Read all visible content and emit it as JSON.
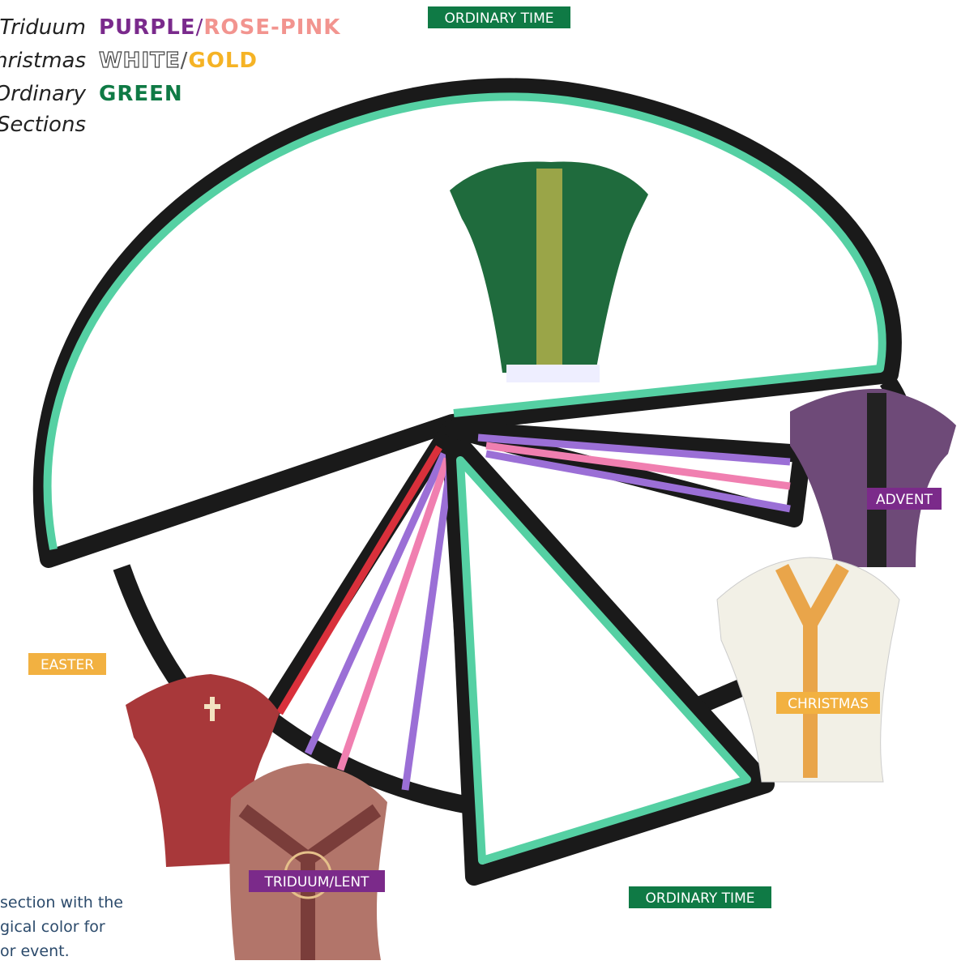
{
  "legend": [
    {
      "label": "Triduum",
      "colors": [
        "PURPLE",
        "/",
        "ROSE-PINK"
      ]
    },
    {
      "label": "hristmas",
      "colors": [
        "WHITE",
        "/",
        "GOLD"
      ]
    },
    {
      "label": "Ordinary",
      "colors": [
        "GREEN"
      ]
    },
    {
      "label": "Sections"
    }
  ],
  "labels": [
    "ORDINARY TIME",
    "ADVENT",
    "CHRISTMAS",
    "EASTER",
    "TRIDUUM/LENT",
    "ORDINARY TIME"
  ],
  "note": [
    "section with the",
    "gical color for",
    "or event."
  ]
}
